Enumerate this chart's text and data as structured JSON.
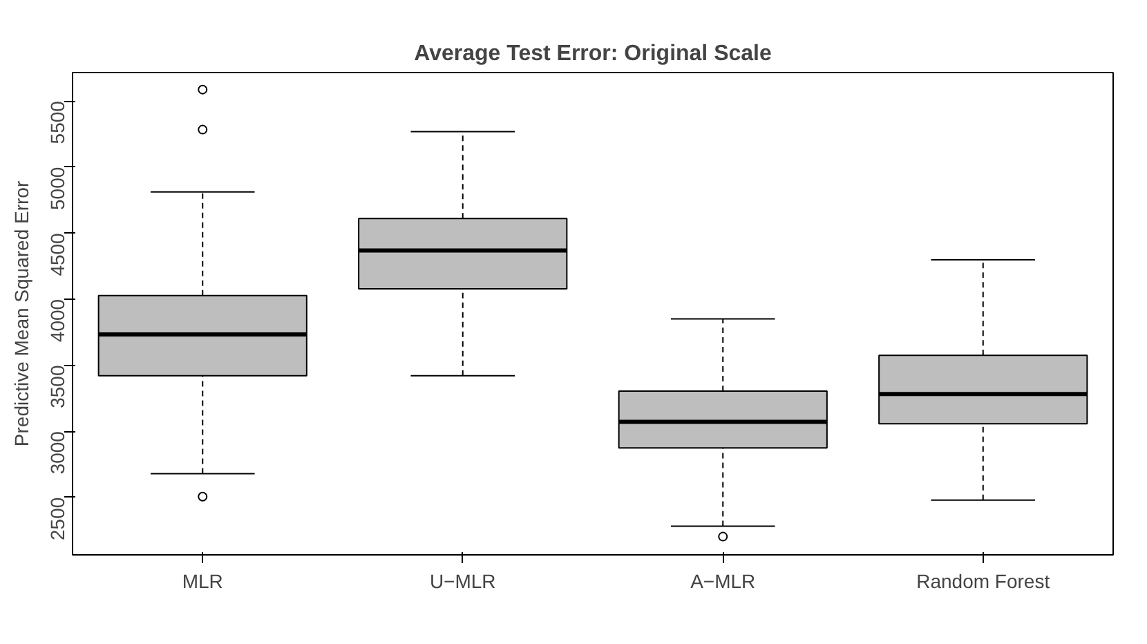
{
  "chart_data": {
    "type": "box",
    "title": "Average Test Error: Original Scale",
    "ylabel": "Predictive Mean Squared Error",
    "categories": [
      "MLR",
      "U−MLR",
      "A−MLR",
      "Random Forest"
    ],
    "color": "#bebebe",
    "grid": false,
    "ylim": [
      2064,
      5715
    ],
    "yticks": [
      2500,
      3000,
      3500,
      4000,
      4500,
      5000,
      5500
    ],
    "boxes": [
      {
        "low": 2679,
        "q1": 3420,
        "median": 3733,
        "q3": 4027,
        "high": 4811,
        "outliers": [
          5586,
          5283,
          2505
        ]
      },
      {
        "low": 3420,
        "q1": 4078,
        "median": 4368,
        "q3": 4610,
        "high": 5268
      },
      {
        "low": 2281,
        "q1": 2874,
        "median": 3071,
        "q3": 3304,
        "high": 3850,
        "outliers": [
          2202
        ]
      },
      {
        "low": 2478,
        "q1": 3056,
        "median": 3281,
        "q3": 3575,
        "high": 4298
      }
    ]
  }
}
